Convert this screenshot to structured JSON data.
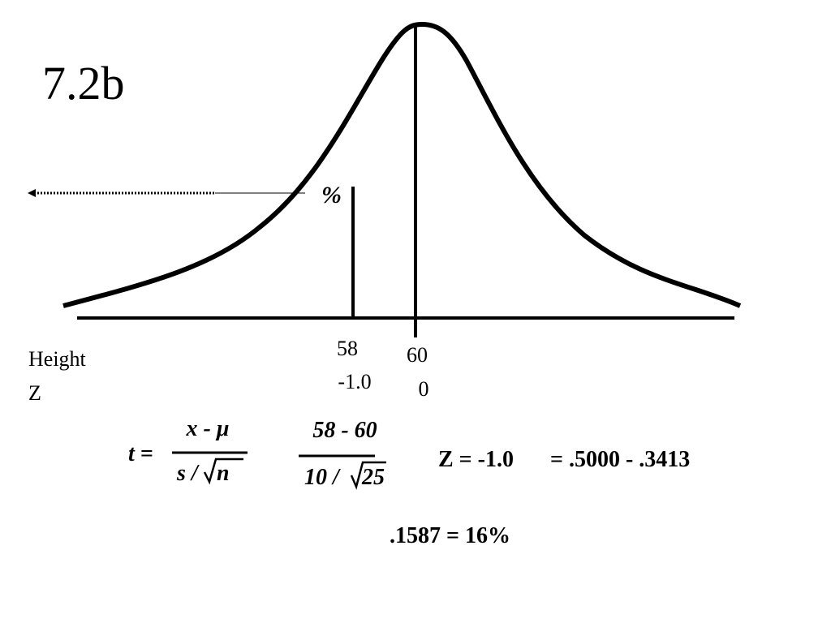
{
  "title": "7.2b",
  "curve": {
    "percent_label": "%"
  },
  "axis": {
    "row_labels": [
      "Height",
      "Z"
    ],
    "points": [
      {
        "height": "58",
        "z": "-1.0"
      },
      {
        "height": "60",
        "z": "0"
      }
    ]
  },
  "formula": {
    "lhs": "t =",
    "numerator": "x - μ",
    "denominator_prefix": "s /",
    "denominator_root": "n",
    "sub_numerator": "58 - 60",
    "sub_denominator_prefix": "10 /",
    "sub_denominator_root": "25",
    "z_value": "Z = -1.0",
    "probability": "= .5000 - .3413",
    "result": ".1587 = 16%"
  }
}
